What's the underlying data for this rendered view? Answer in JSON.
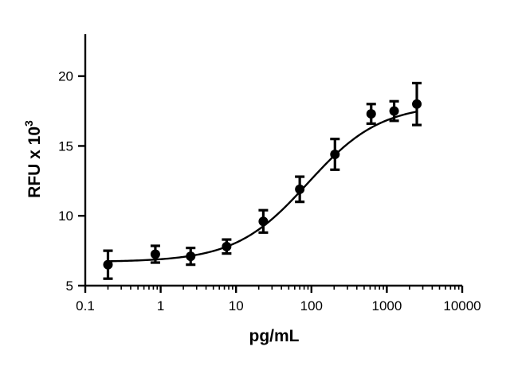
{
  "chart_data": {
    "type": "scatter",
    "xscale": "log",
    "xlabel": "pg/mL",
    "ylabel_text": "RFU x 10",
    "ylabel_exponent": "3",
    "xlim": [
      0.1,
      10000
    ],
    "ylim": [
      5,
      23
    ],
    "x_ticks": [
      0.1,
      1,
      10,
      100,
      1000,
      10000
    ],
    "x_tick_labels": [
      "0.1",
      "1",
      "10",
      "100",
      "1000",
      "10000"
    ],
    "y_ticks": [
      5,
      10,
      15,
      20
    ],
    "y_tick_labels": [
      "5",
      "10",
      "15",
      "20"
    ],
    "grid": false,
    "points": [
      {
        "x": 0.2,
        "y": 6.5,
        "err": 1.0
      },
      {
        "x": 0.85,
        "y": 7.25,
        "err": 0.6
      },
      {
        "x": 2.5,
        "y": 7.1,
        "err": 0.6
      },
      {
        "x": 7.5,
        "y": 7.8,
        "err": 0.5
      },
      {
        "x": 23,
        "y": 9.6,
        "err": 0.8
      },
      {
        "x": 70,
        "y": 11.9,
        "err": 0.9
      },
      {
        "x": 205,
        "y": 14.4,
        "err": 1.1
      },
      {
        "x": 620,
        "y": 17.3,
        "err": 0.7
      },
      {
        "x": 1250,
        "y": 17.5,
        "err": 0.7
      },
      {
        "x": 2500,
        "y": 18.0,
        "err": 1.5
      }
    ],
    "fit_curve": {
      "model": "four-parameter logistic",
      "bottom": 6.7,
      "top": 18.0,
      "ec50": 90,
      "hill": 0.9
    },
    "fit_x_range": [
      0.2,
      2500
    ]
  }
}
